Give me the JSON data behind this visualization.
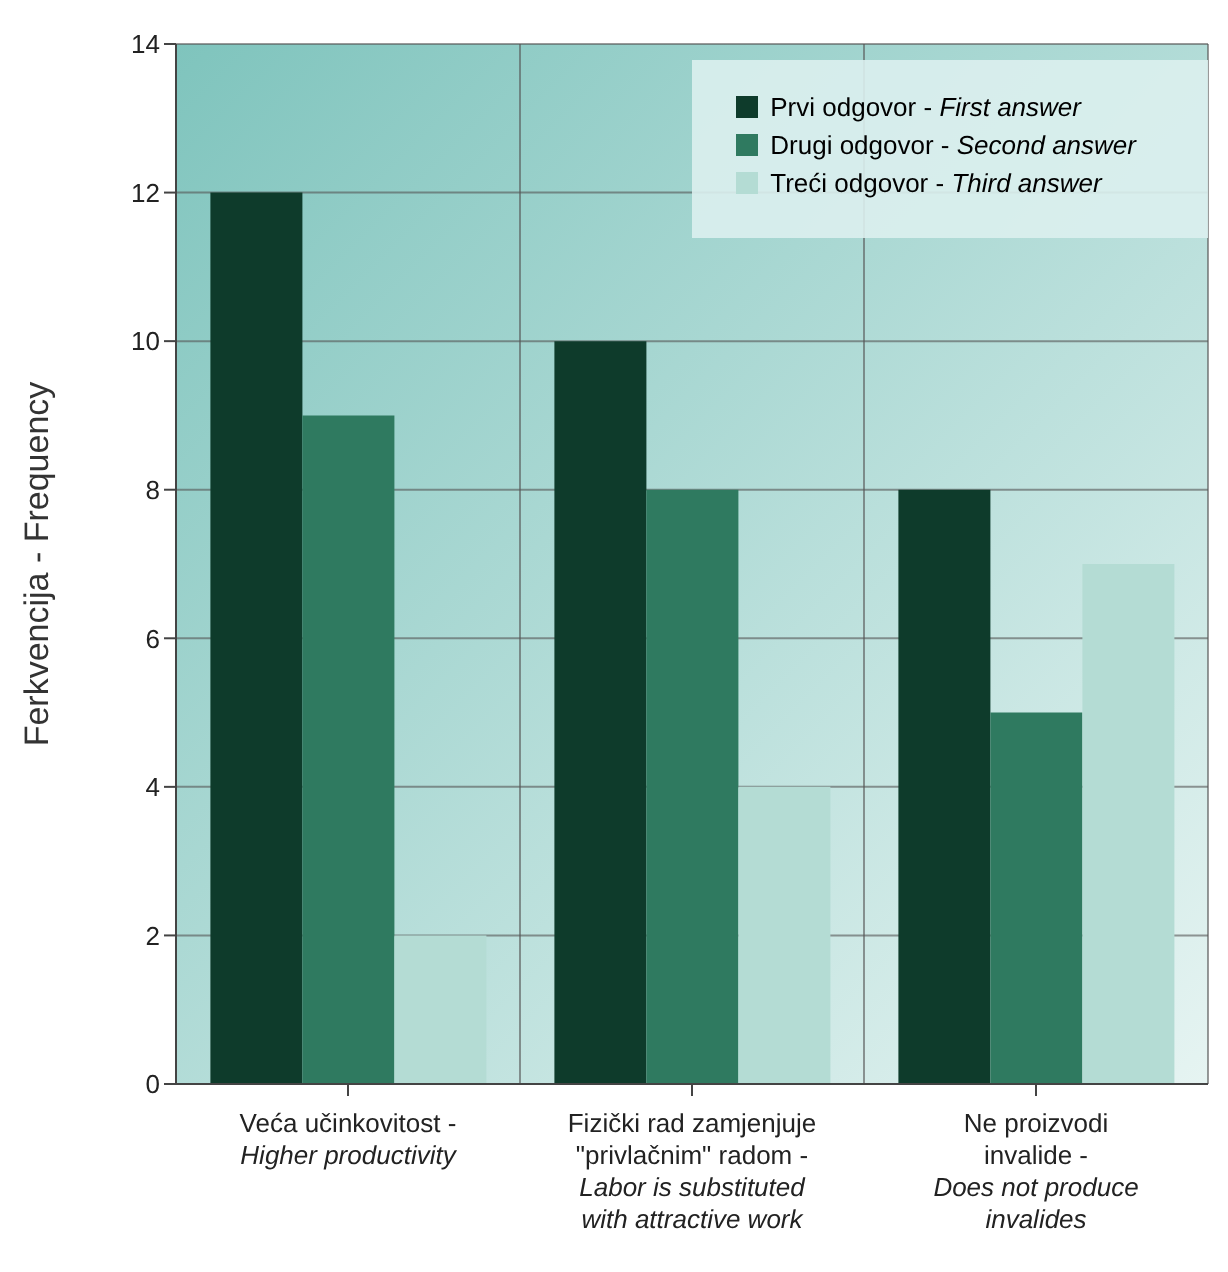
{
  "chart_data": {
    "type": "bar",
    "ylabel": "Ferkvencija - Frequency",
    "categories": [
      "Veća učinkovitost - Higher productivity",
      "Fizički rad zamjenjuje \"privlačnim\" radom - Labor is substituted with attractive work",
      "Ne proizvodi invalide - Does not produce invalides"
    ],
    "series": [
      {
        "name": "Prvi odgovor - First answer",
        "color": "#0e3b2b",
        "values": [
          12,
          10,
          8
        ]
      },
      {
        "name": "Drugi odgovor - Second answer",
        "color": "#2f7a60",
        "values": [
          9,
          8,
          5
        ]
      },
      {
        "name": "Treći odgovor - Third answer",
        "color": "#b4dcd4",
        "values": [
          2,
          4,
          7
        ]
      }
    ],
    "ylim": [
      0,
      14
    ],
    "yticks": [
      0,
      2,
      4,
      6,
      8,
      10,
      12,
      14
    ],
    "grid": true,
    "legend": "top right"
  }
}
